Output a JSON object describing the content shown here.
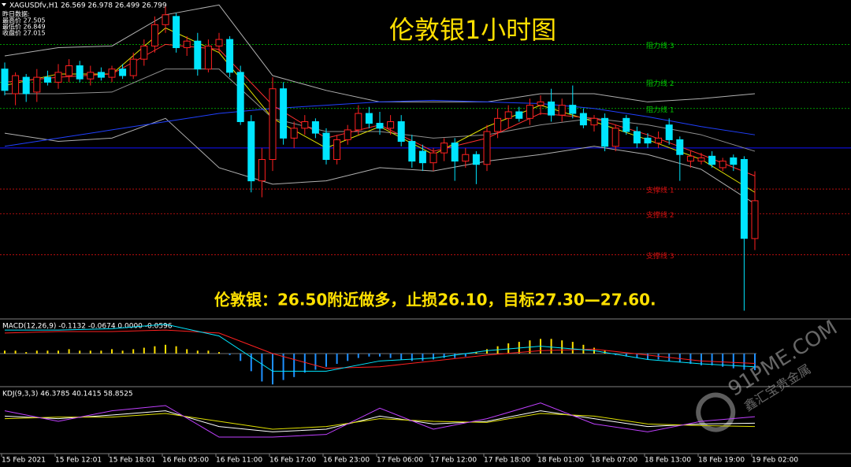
{
  "chart_data": {
    "type": "candlestick",
    "header": "XAGUSDfv,H1  26.569 26.978 26.499 26.799",
    "info": [
      "昨日数据:",
      "最高价 27.505",
      "最低价 26.849",
      "收盘价 27.015"
    ],
    "title": "伦敦银1小时图",
    "annotation": "伦敦银：26.50附近做多，止损26.10，目标27.30—27.60.",
    "categories": [
      "15 Feb 2021",
      null,
      null,
      null,
      null,
      "15 Feb 12:01",
      null,
      null,
      null,
      null,
      "15 Feb 18:01",
      null,
      null,
      null,
      null,
      "16 Feb 05:00",
      null,
      null,
      null,
      null,
      "16 Feb 11:00",
      null,
      null,
      null,
      null,
      "16 Feb 17:00",
      null,
      null,
      null,
      null,
      "16 Feb 23:00",
      null,
      null,
      null,
      null,
      "17 Feb 06:00",
      null,
      null,
      null,
      null,
      "17 Feb 12:00",
      null,
      null,
      null,
      null,
      "17 Feb 18:00",
      null,
      null,
      null,
      null,
      "18 Feb 01:00",
      null,
      null,
      null,
      null,
      "18 Feb 07:00",
      null,
      null,
      null,
      null,
      "18 Feb 13:00",
      null,
      null,
      null,
      null,
      "18 Feb 19:00",
      null,
      null,
      null,
      null,
      "19 Feb 02:00"
    ],
    "ohlc": [
      [
        27.6,
        27.64,
        27.44,
        27.47
      ],
      [
        27.45,
        27.58,
        27.38,
        27.56
      ],
      [
        27.55,
        27.57,
        27.4,
        27.45
      ],
      [
        27.46,
        27.6,
        27.4,
        27.55
      ],
      [
        27.55,
        27.59,
        27.5,
        27.52
      ],
      [
        27.52,
        27.63,
        27.48,
        27.58
      ],
      [
        27.56,
        27.66,
        27.52,
        27.62
      ],
      [
        27.62,
        27.65,
        27.52,
        27.54
      ],
      [
        27.54,
        27.62,
        27.5,
        27.58
      ],
      [
        27.58,
        27.61,
        27.53,
        27.55
      ],
      [
        27.55,
        27.62,
        27.52,
        27.6
      ],
      [
        27.6,
        27.63,
        27.54,
        27.56
      ],
      [
        27.56,
        27.7,
        27.54,
        27.66
      ],
      [
        27.66,
        27.78,
        27.62,
        27.74
      ],
      [
        27.74,
        27.92,
        27.7,
        27.87
      ],
      [
        27.87,
        27.98,
        27.82,
        27.93
      ],
      [
        27.92,
        27.94,
        27.7,
        27.73
      ],
      [
        27.73,
        27.8,
        27.68,
        27.77
      ],
      [
        27.77,
        27.82,
        27.56,
        27.6
      ],
      [
        27.6,
        27.78,
        27.58,
        27.74
      ],
      [
        27.74,
        27.82,
        27.7,
        27.78
      ],
      [
        27.78,
        27.8,
        27.55,
        27.58
      ],
      [
        27.58,
        27.62,
        27.26,
        27.28
      ],
      [
        27.28,
        27.32,
        26.85,
        26.92
      ],
      [
        26.92,
        27.12,
        26.82,
        27.05
      ],
      [
        27.05,
        27.55,
        26.98,
        27.48
      ],
      [
        27.48,
        27.52,
        27.14,
        27.18
      ],
      [
        27.18,
        27.28,
        27.12,
        27.24
      ],
      [
        27.24,
        27.32,
        27.2,
        27.28
      ],
      [
        27.28,
        27.3,
        27.18,
        27.21
      ],
      [
        27.21,
        27.24,
        27.02,
        27.05
      ],
      [
        27.05,
        27.2,
        27.02,
        27.17
      ],
      [
        27.17,
        27.26,
        27.14,
        27.23
      ],
      [
        27.23,
        27.38,
        27.2,
        27.33
      ],
      [
        27.33,
        27.37,
        27.24,
        27.27
      ],
      [
        27.27,
        27.34,
        27.2,
        27.24
      ],
      [
        27.24,
        27.32,
        27.2,
        27.28
      ],
      [
        27.28,
        27.32,
        27.13,
        27.16
      ],
      [
        27.16,
        27.2,
        27.0,
        27.04
      ],
      [
        27.1,
        27.14,
        26.98,
        27.03
      ],
      [
        27.03,
        27.12,
        26.98,
        27.09
      ],
      [
        27.09,
        27.18,
        27.04,
        27.15
      ],
      [
        27.15,
        27.18,
        26.92,
        27.04
      ],
      [
        27.04,
        27.12,
        27.0,
        27.08
      ],
      [
        27.08,
        27.1,
        26.9,
        27.02
      ],
      [
        27.02,
        27.26,
        26.98,
        27.22
      ],
      [
        27.22,
        27.36,
        27.18,
        27.3
      ],
      [
        27.3,
        27.38,
        27.24,
        27.34
      ],
      [
        27.34,
        27.37,
        27.28,
        27.3
      ],
      [
        27.3,
        27.42,
        27.26,
        27.38
      ],
      [
        27.38,
        27.44,
        27.32,
        27.4
      ],
      [
        27.4,
        27.48,
        27.28,
        27.32
      ],
      [
        27.32,
        27.42,
        27.28,
        27.38
      ],
      [
        27.38,
        27.5,
        27.3,
        27.33
      ],
      [
        27.33,
        27.36,
        27.24,
        27.26
      ],
      [
        27.26,
        27.32,
        27.22,
        27.3
      ],
      [
        27.3,
        27.33,
        27.1,
        27.13
      ],
      [
        27.13,
        27.26,
        27.1,
        27.24
      ],
      [
        27.3,
        27.32,
        27.2,
        27.22
      ],
      [
        27.22,
        27.25,
        27.12,
        27.15
      ],
      [
        27.18,
        27.21,
        27.12,
        27.15
      ],
      [
        27.15,
        27.22,
        27.12,
        27.18
      ],
      [
        27.26,
        27.3,
        27.14,
        27.17
      ],
      [
        27.17,
        27.19,
        26.92,
        27.08
      ],
      [
        27.04,
        27.1,
        27.0,
        27.07
      ],
      [
        27.04,
        27.09,
        27.02,
        27.06
      ],
      [
        27.07,
        27.1,
        27.0,
        27.02
      ],
      [
        27.0,
        27.06,
        26.98,
        27.04
      ],
      [
        27.06,
        27.08,
        26.98,
        27.02
      ],
      [
        27.05,
        27.07,
        26.13,
        26.57
      ],
      [
        26.569,
        26.978,
        26.499,
        26.799
      ]
    ],
    "up_color": "#ff2020",
    "down_color": "#00e5ff",
    "ylim": [
      26.08,
      28.02
    ],
    "levels": [
      {
        "label": "阻力线 3",
        "value": 27.75,
        "color": "#00c800"
      },
      {
        "label": "阻力线 2",
        "value": 27.52,
        "color": "#00c800"
      },
      {
        "label": "阻力线 1",
        "value": 27.36,
        "color": "#00c800"
      },
      {
        "label": "支撑线 1",
        "value": 26.87,
        "color": "#d01010"
      },
      {
        "label": "支撑线 2",
        "value": 26.72,
        "color": "#d01010"
      },
      {
        "label": "支撑线 3",
        "value": 26.47,
        "color": "#d01010"
      }
    ],
    "baseline_level": {
      "value": 27.12,
      "color": "#1010ff"
    },
    "indicator_x": [
      0,
      5,
      10,
      15,
      20,
      25,
      30,
      35,
      40,
      45,
      50,
      55,
      60,
      65,
      70
    ],
    "overlays": [
      {
        "color": "#b0b0b0",
        "values": [
          27.68,
          27.73,
          27.74,
          27.93,
          27.99,
          27.56,
          27.47,
          27.4,
          27.4,
          27.4,
          27.45,
          27.45,
          27.4,
          27.42,
          27.45
        ]
      },
      {
        "color": "#b0b0b0",
        "values": [
          27.21,
          27.16,
          27.18,
          27.3,
          27.0,
          26.9,
          26.92,
          27.0,
          26.98,
          27.04,
          27.08,
          27.13,
          27.08,
          26.99,
          26.78
        ]
      },
      {
        "color": "#909090",
        "values": [
          27.45,
          27.45,
          27.46,
          27.6,
          27.6,
          27.3,
          27.22,
          27.22,
          27.18,
          27.2,
          27.26,
          27.3,
          27.26,
          27.2,
          27.1
        ]
      },
      {
        "color": "#2040ff",
        "values": [
          27.13,
          27.18,
          27.23,
          27.28,
          27.33,
          27.36,
          27.38,
          27.4,
          27.41,
          27.4,
          27.39,
          27.36,
          27.31,
          27.25,
          27.2
        ]
      },
      {
        "color": "#e0e000",
        "values": [
          27.5,
          27.57,
          27.57,
          27.85,
          27.7,
          27.3,
          27.12,
          27.25,
          27.08,
          27.25,
          27.38,
          27.28,
          27.17,
          27.05,
          26.85
        ]
      },
      {
        "color": "#ff3030",
        "values": [
          27.52,
          27.55,
          27.57,
          27.75,
          27.72,
          27.38,
          27.18,
          27.26,
          27.1,
          27.18,
          27.33,
          27.3,
          27.2,
          27.08,
          26.95
        ]
      }
    ],
    "macd": {
      "label": "MACD(12,26,9) -0.1132 -0.0674 0.0000 -0.0596",
      "ylim": [
        -0.22,
        0.22
      ],
      "histogram": [
        0.02,
        0.02,
        0.01,
        0.02,
        0.02,
        0.02,
        0.03,
        0.02,
        0.02,
        0.02,
        0.03,
        0.02,
        0.03,
        0.04,
        0.05,
        0.06,
        0.05,
        0.03,
        0.02,
        0.02,
        0.01,
        -0.01,
        -0.05,
        -0.12,
        -0.19,
        -0.21,
        -0.18,
        -0.16,
        -0.13,
        -0.11,
        -0.09,
        -0.07,
        -0.05,
        -0.03,
        -0.02,
        -0.02,
        -0.03,
        -0.04,
        -0.05,
        -0.05,
        -0.04,
        -0.03,
        -0.03,
        -0.02,
        0.01,
        0.03,
        0.05,
        0.07,
        0.08,
        0.09,
        0.1,
        0.1,
        0.09,
        0.08,
        0.06,
        0.04,
        0.02,
        -0.01,
        -0.02,
        -0.03,
        -0.04,
        -0.04,
        -0.05,
        -0.06,
        -0.07,
        -0.08,
        -0.08,
        -0.09,
        -0.1,
        -0.11,
        -0.1132
      ],
      "positive_color": "#ffe000",
      "negative_color": "#1e90ff",
      "lines": [
        {
          "color": "#ff2020",
          "values": [
            0.14,
            0.15,
            0.15,
            0.16,
            0.14,
            0.0,
            -0.1,
            -0.09,
            -0.05,
            -0.01,
            0.02,
            0.03,
            -0.01,
            -0.05,
            -0.0674
          ]
        },
        {
          "color": "#00e5ff",
          "values": [
            0.16,
            0.16,
            0.17,
            0.2,
            0.12,
            -0.12,
            -0.12,
            -0.05,
            -0.03,
            0.02,
            0.05,
            0.02,
            -0.04,
            -0.07,
            -0.09
          ]
        }
      ]
    },
    "kdj": {
      "label": "KDJ(9,3,3) 46.3785 40.1415 58.8525",
      "ylim": [
        -10,
        110
      ],
      "lines": [
        {
          "color": "#ffffff",
          "values": [
            60,
            55,
            62,
            70,
            40,
            30,
            35,
            60,
            45,
            50,
            70,
            55,
            40,
            45,
            46.3785
          ]
        },
        {
          "color": "#e0e000",
          "values": [
            55,
            58,
            58,
            65,
            50,
            35,
            40,
            55,
            50,
            48,
            65,
            60,
            45,
            42,
            40.1415
          ]
        },
        {
          "color": "#c040ff",
          "values": [
            70,
            50,
            70,
            80,
            20,
            20,
            25,
            75,
            35,
            55,
            85,
            45,
            30,
            50,
            58.8525
          ]
        }
      ]
    },
    "watermark": [
      "91PME.COM",
      "鑫汇宝贵金属"
    ]
  }
}
